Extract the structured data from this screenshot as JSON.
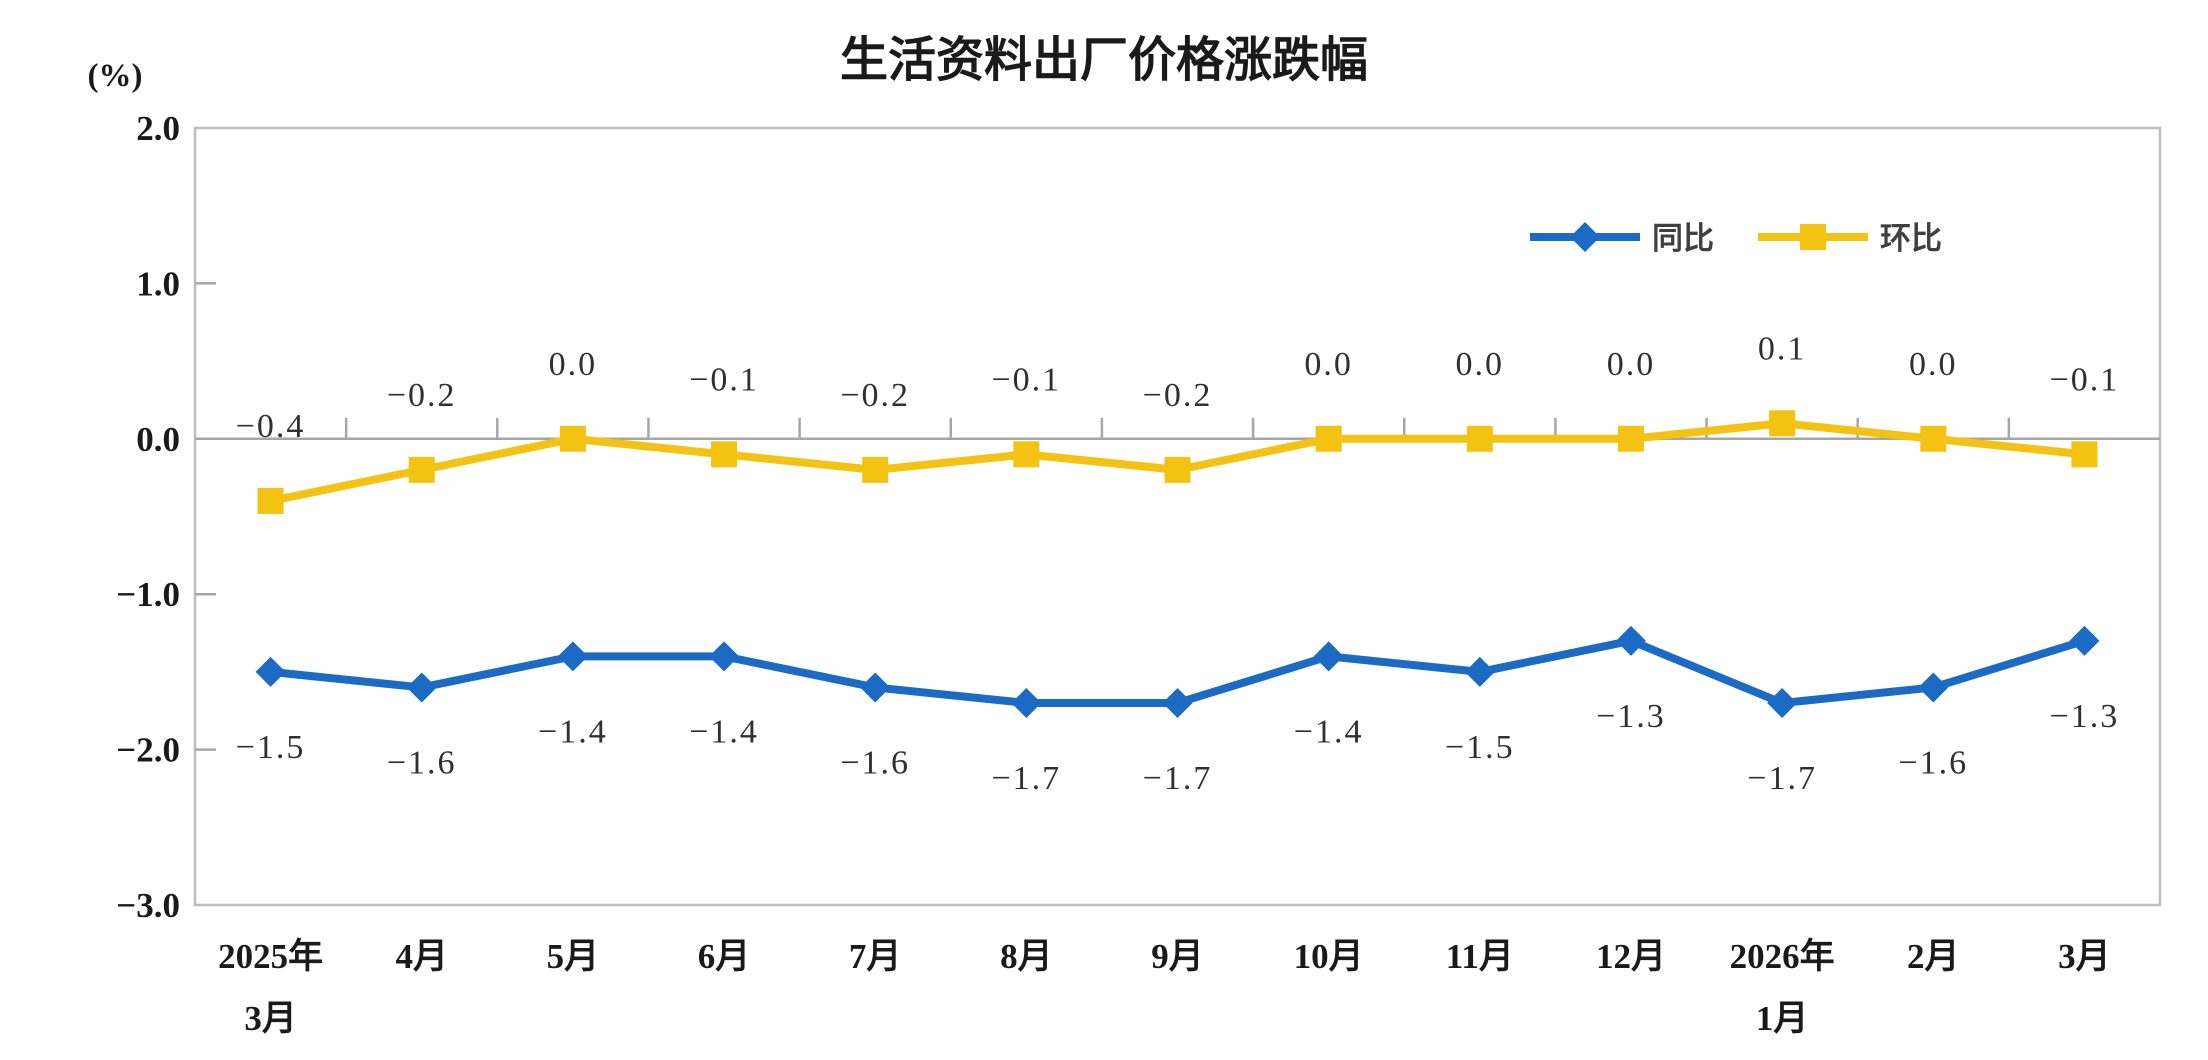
{
  "title": "生活资料出厂价格涨跌幅",
  "y_axis_unit": "(%)",
  "colors": {
    "yoy_line": "#1B6AC4",
    "mom_line": "#F4C213",
    "frame": "#BDBDBD",
    "zero_line": "#A6A6A6",
    "label_text": "#303030"
  },
  "legend": {
    "position": "top-right",
    "items": [
      {
        "label": "同比",
        "marker": "diamond",
        "color": "#1B6AC4"
      },
      {
        "label": "环比",
        "marker": "square",
        "color": "#F4C213"
      }
    ]
  },
  "chart_data": {
    "type": "line",
    "title": "生活资料出厂价格涨跌幅",
    "ylabel": "(%)",
    "ylim": [
      -3.0,
      2.0
    ],
    "yticks": [
      2.0,
      1.0,
      0.0,
      -1.0,
      -2.0,
      -3.0
    ],
    "grid": false,
    "legend_position": "top-right",
    "categories": [
      [
        "2025年",
        "3月"
      ],
      [
        "4月"
      ],
      [
        "5月"
      ],
      [
        "6月"
      ],
      [
        "7月"
      ],
      [
        "8月"
      ],
      [
        "9月"
      ],
      [
        "10月"
      ],
      [
        "11月"
      ],
      [
        "12月"
      ],
      [
        "2026年",
        "1月"
      ],
      [
        "2月"
      ],
      [
        "3月"
      ]
    ],
    "series": [
      {
        "id": "yoy",
        "name": "同比",
        "marker": "diamond",
        "color": "#1B6AC4",
        "label_side": "below",
        "values": [
          -1.5,
          -1.6,
          -1.4,
          -1.4,
          -1.6,
          -1.7,
          -1.7,
          -1.4,
          -1.5,
          -1.3,
          -1.7,
          -1.6,
          -1.3
        ]
      },
      {
        "id": "mom",
        "name": "环比",
        "marker": "square",
        "color": "#F4C213",
        "label_side": "above",
        "values": [
          -0.4,
          -0.2,
          0.0,
          -0.1,
          -0.2,
          -0.1,
          -0.2,
          0.0,
          0.0,
          0.0,
          0.1,
          0.0,
          -0.1
        ]
      }
    ]
  }
}
